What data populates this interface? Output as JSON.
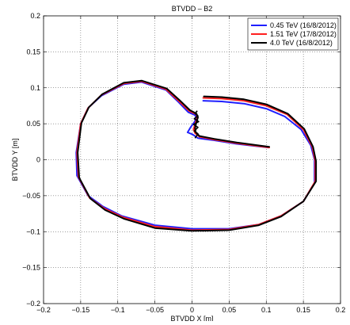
{
  "chart_data": {
    "type": "line",
    "title": "BTVDD – B2",
    "xlabel": "BTVDD X [m]",
    "ylabel": "BTVDD Y [m]",
    "xlim": [
      -0.2,
      0.2
    ],
    "ylim": [
      -0.2,
      0.2
    ],
    "grid": true,
    "legend_position": "top-right",
    "x_ticks": [
      "−0.2",
      "−0.15",
      "−0.1",
      "−0.05",
      "0",
      "0.05",
      "0.1",
      "0.15",
      "0.2"
    ],
    "y_ticks": [
      "−0.2",
      "−0.15",
      "−0.1",
      "−0.05",
      "0",
      "0.05",
      "0.1",
      "0.15",
      "0.2"
    ],
    "series": [
      {
        "name": "0.45 TeV (16/8/2012)",
        "color": "#1f1fff",
        "points": [
          [
            0.103,
            0.017
          ],
          [
            0.06,
            0.022
          ],
          [
            0.03,
            0.027
          ],
          [
            0.008,
            0.03
          ],
          [
            0.001,
            0.035
          ],
          [
            -0.006,
            0.038
          ],
          [
            -0.002,
            0.045
          ],
          [
            0.003,
            0.052
          ],
          [
            0.006,
            0.058
          ],
          [
            0.004,
            0.062
          ],
          [
            -0.005,
            0.066
          ],
          [
            -0.018,
            0.08
          ],
          [
            -0.035,
            0.097
          ],
          [
            -0.068,
            0.108
          ],
          [
            -0.092,
            0.105
          ],
          [
            -0.122,
            0.089
          ],
          [
            -0.14,
            0.072
          ],
          [
            -0.15,
            0.05
          ],
          [
            -0.156,
            0.01
          ],
          [
            -0.155,
            -0.022
          ],
          [
            -0.14,
            -0.05
          ],
          [
            -0.12,
            -0.065
          ],
          [
            -0.095,
            -0.078
          ],
          [
            -0.05,
            -0.091
          ],
          [
            0.0,
            -0.096
          ],
          [
            0.05,
            -0.096
          ],
          [
            0.09,
            -0.09
          ],
          [
            0.12,
            -0.078
          ],
          [
            0.15,
            -0.058
          ],
          [
            0.165,
            -0.032
          ],
          [
            0.165,
            0.0
          ],
          [
            0.16,
            0.02
          ],
          [
            0.147,
            0.042
          ],
          [
            0.125,
            0.06
          ],
          [
            0.1,
            0.071
          ],
          [
            0.07,
            0.078
          ],
          [
            0.04,
            0.081
          ],
          [
            0.015,
            0.082
          ]
        ]
      },
      {
        "name": "1.51 TeV (17/8/2012)",
        "color": "#ff1f1f",
        "points": [
          [
            0.104,
            0.017
          ],
          [
            0.06,
            0.023
          ],
          [
            0.03,
            0.028
          ],
          [
            0.01,
            0.032
          ],
          [
            0.004,
            0.037
          ],
          [
            0.002,
            0.042
          ],
          [
            0.004,
            0.05
          ],
          [
            0.007,
            0.058
          ],
          [
            0.006,
            0.063
          ],
          [
            -0.004,
            0.068
          ],
          [
            -0.018,
            0.082
          ],
          [
            -0.035,
            0.098
          ],
          [
            -0.068,
            0.109
          ],
          [
            -0.092,
            0.106
          ],
          [
            -0.122,
            0.09
          ],
          [
            -0.14,
            0.072
          ],
          [
            -0.15,
            0.05
          ],
          [
            -0.155,
            0.01
          ],
          [
            -0.153,
            -0.024
          ],
          [
            -0.138,
            -0.053
          ],
          [
            -0.118,
            -0.068
          ],
          [
            -0.093,
            -0.08
          ],
          [
            -0.05,
            -0.093
          ],
          [
            0.0,
            -0.098
          ],
          [
            0.05,
            -0.097
          ],
          [
            0.09,
            -0.09
          ],
          [
            0.12,
            -0.078
          ],
          [
            0.15,
            -0.058
          ],
          [
            0.166,
            -0.03
          ],
          [
            0.166,
            -0.002
          ],
          [
            0.162,
            0.018
          ],
          [
            0.15,
            0.042
          ],
          [
            0.128,
            0.063
          ],
          [
            0.1,
            0.075
          ],
          [
            0.07,
            0.082
          ],
          [
            0.04,
            0.085
          ],
          [
            0.015,
            0.086
          ]
        ]
      },
      {
        "name": "4.0 TeV (16/8/2012)",
        "color": "#000000",
        "points": [
          [
            0.104,
            0.018
          ],
          [
            0.06,
            0.024
          ],
          [
            0.03,
            0.029
          ],
          [
            0.01,
            0.033
          ],
          [
            0.005,
            0.038
          ],
          [
            0.004,
            0.044
          ],
          [
            0.006,
            0.052
          ],
          [
            0.008,
            0.059
          ],
          [
            0.006,
            0.064
          ],
          [
            -0.003,
            0.069
          ],
          [
            -0.017,
            0.083
          ],
          [
            -0.034,
            0.099
          ],
          [
            -0.068,
            0.11
          ],
          [
            -0.092,
            0.107
          ],
          [
            -0.121,
            0.091
          ],
          [
            -0.139,
            0.073
          ],
          [
            -0.149,
            0.051
          ],
          [
            -0.154,
            0.01
          ],
          [
            -0.152,
            -0.025
          ],
          [
            -0.137,
            -0.054
          ],
          [
            -0.117,
            -0.07
          ],
          [
            -0.092,
            -0.082
          ],
          [
            -0.05,
            -0.095
          ],
          [
            0.0,
            -0.099
          ],
          [
            0.05,
            -0.098
          ],
          [
            0.09,
            -0.091
          ],
          [
            0.12,
            -0.079
          ],
          [
            0.15,
            -0.058
          ],
          [
            0.167,
            -0.03
          ],
          [
            0.167,
            -0.002
          ],
          [
            0.163,
            0.018
          ],
          [
            0.151,
            0.043
          ],
          [
            0.129,
            0.064
          ],
          [
            0.1,
            0.077
          ],
          [
            0.07,
            0.084
          ],
          [
            0.04,
            0.087
          ],
          [
            0.016,
            0.088
          ]
        ]
      }
    ],
    "tangle": {
      "series_index": 2,
      "points": [
        [
          0.004,
          0.03
        ],
        [
          0.008,
          0.036
        ],
        [
          0.003,
          0.04
        ],
        [
          0.008,
          0.045
        ],
        [
          0.002,
          0.049
        ],
        [
          0.009,
          0.053
        ],
        [
          0.003,
          0.057
        ],
        [
          0.008,
          0.061
        ],
        [
          0.004,
          0.064
        ],
        [
          0.007,
          0.068
        ]
      ]
    }
  }
}
